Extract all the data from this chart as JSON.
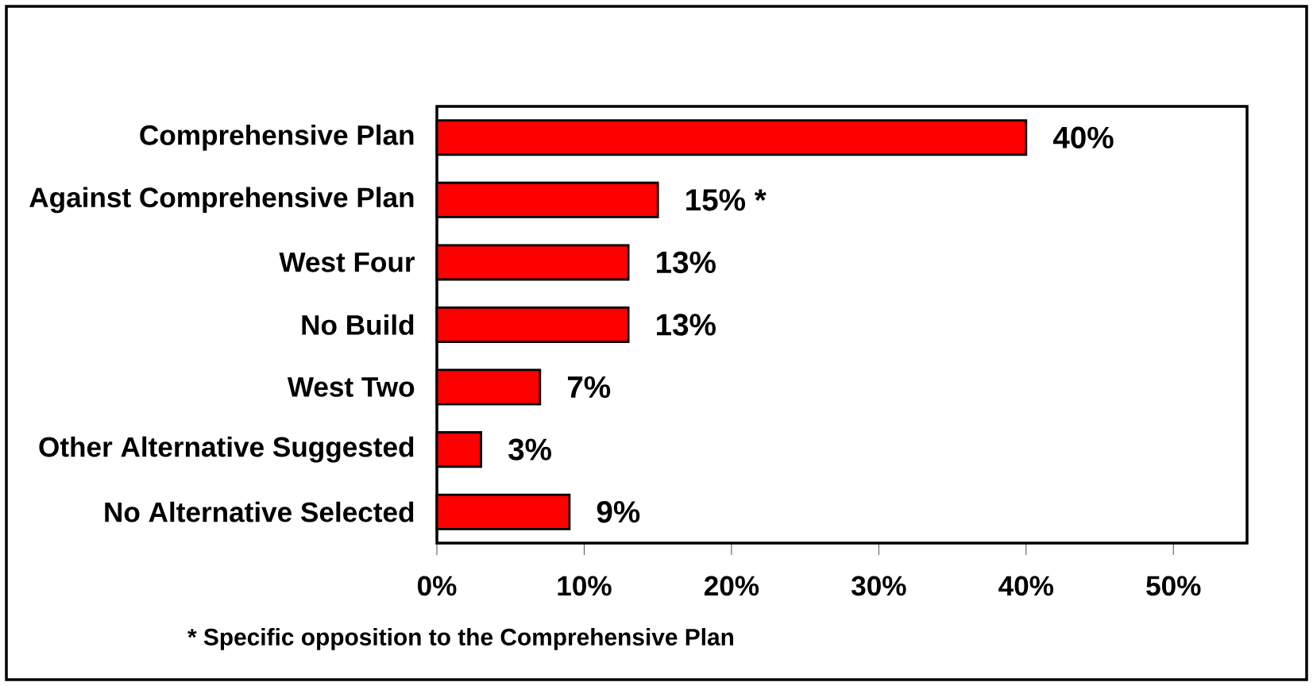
{
  "chart_data": {
    "type": "bar",
    "orientation": "horizontal",
    "categories": [
      "Comprehensive Plan",
      "Against Comprehensive Plan",
      "West Four",
      "No Build",
      "West Two",
      "Other Alternative Suggested",
      "No Alternative Selected"
    ],
    "values": [
      40,
      15,
      13,
      13,
      7,
      3,
      9
    ],
    "value_labels": [
      "40%",
      "15% *",
      "13%",
      "13%",
      "7%",
      "3%",
      "9%"
    ],
    "color": "#ff0000",
    "xlim": [
      0,
      55
    ],
    "xticks": [
      {
        "value": 0,
        "label": "0%"
      },
      {
        "value": 10,
        "label": "10%"
      },
      {
        "value": 20,
        "label": "20%"
      },
      {
        "value": 30,
        "label": "30%"
      },
      {
        "value": 40,
        "label": "40%"
      },
      {
        "value": 50,
        "label": "50%"
      }
    ],
    "annotations": [
      "* Specific opposition to the Comprehensive Plan"
    ]
  }
}
